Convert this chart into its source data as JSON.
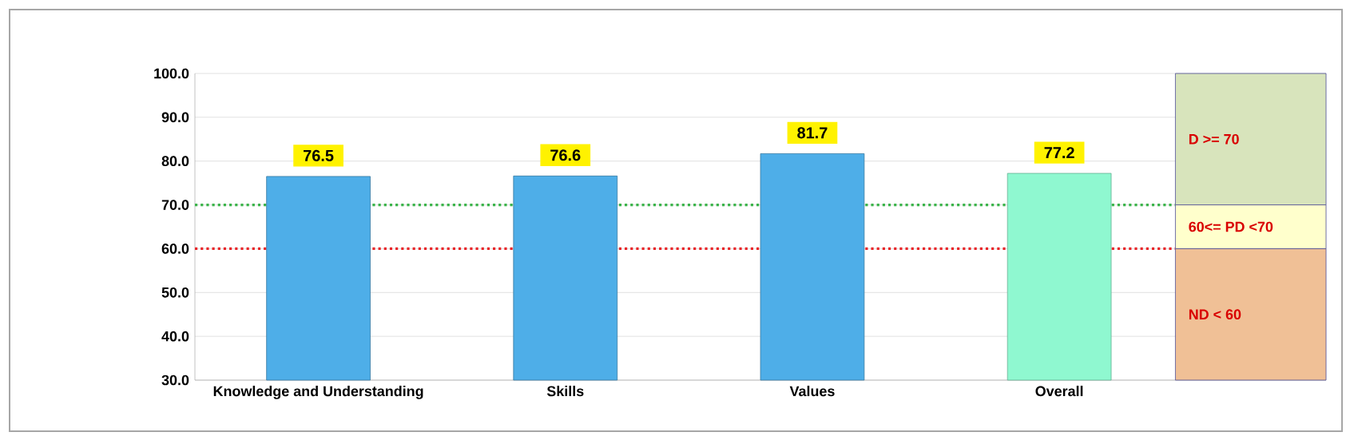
{
  "chart_data": {
    "type": "bar",
    "categories": [
      "Knowledge and Understanding",
      "Skills",
      "Values",
      "Overall"
    ],
    "values": [
      76.5,
      76.6,
      81.7,
      77.2
    ],
    "colors": [
      "#4eaee8",
      "#4eaee8",
      "#4eaee8",
      "#8ff8d0"
    ],
    "ylim": [
      30,
      100
    ],
    "yticks": [
      {
        "value": 30,
        "label": "30.0"
      },
      {
        "value": 40,
        "label": "40.0"
      },
      {
        "value": 50,
        "label": "50.0"
      },
      {
        "value": 60,
        "label": "60.0"
      },
      {
        "value": 70,
        "label": "70.0"
      },
      {
        "value": 80,
        "label": "80.0"
      },
      {
        "value": 90,
        "label": "90.0"
      },
      {
        "value": 100,
        "label": "100.0"
      }
    ],
    "grid": "y",
    "data_labels": true,
    "ref_lines": [
      {
        "axis": "y",
        "value": 70,
        "color": "#3cb44b",
        "line_style": "dotted"
      },
      {
        "axis": "y",
        "value": 60,
        "color": "#e8262a",
        "line_style": "dotted"
      }
    ],
    "bands": [
      {
        "axis": "y",
        "from": 70,
        "to": 100,
        "label": "D >= 70",
        "color": "#d8e4bc"
      },
      {
        "axis": "y",
        "from": 60,
        "to": 70,
        "label": "60<= PD <70",
        "color": "#ffffcc"
      },
      {
        "axis": "y",
        "from": 30,
        "to": 60,
        "label": "ND < 60",
        "color": "#f0c096"
      }
    ]
  }
}
